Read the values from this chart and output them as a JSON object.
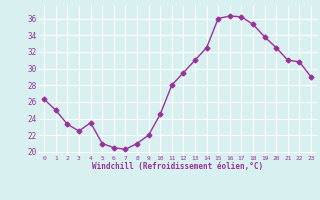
{
  "x": [
    0,
    1,
    2,
    3,
    4,
    5,
    6,
    7,
    8,
    9,
    10,
    11,
    12,
    13,
    14,
    15,
    16,
    17,
    18,
    19,
    20,
    21,
    22,
    23
  ],
  "y": [
    26.3,
    25.0,
    23.3,
    22.5,
    23.5,
    21.0,
    20.5,
    20.3,
    21.0,
    22.0,
    24.5,
    28.0,
    29.5,
    31.0,
    32.5,
    36.0,
    36.3,
    36.2,
    35.3,
    33.8,
    32.5,
    31.0,
    30.8,
    29.0
  ],
  "line_color": "#993399",
  "marker": "D",
  "bg_color": "#d8f0f0",
  "grid_color": "#ffffff",
  "xlabel": "Windchill (Refroidissement éolien,°C)",
  "xlabel_color": "#993399",
  "tick_color": "#993399",
  "ylabel_ticks": [
    20,
    22,
    24,
    26,
    28,
    30,
    32,
    34,
    36
  ],
  "ylim": [
    19.5,
    37.5
  ],
  "xlim": [
    -0.5,
    23.5
  ],
  "figsize": [
    3.2,
    2.0
  ],
  "dpi": 100
}
